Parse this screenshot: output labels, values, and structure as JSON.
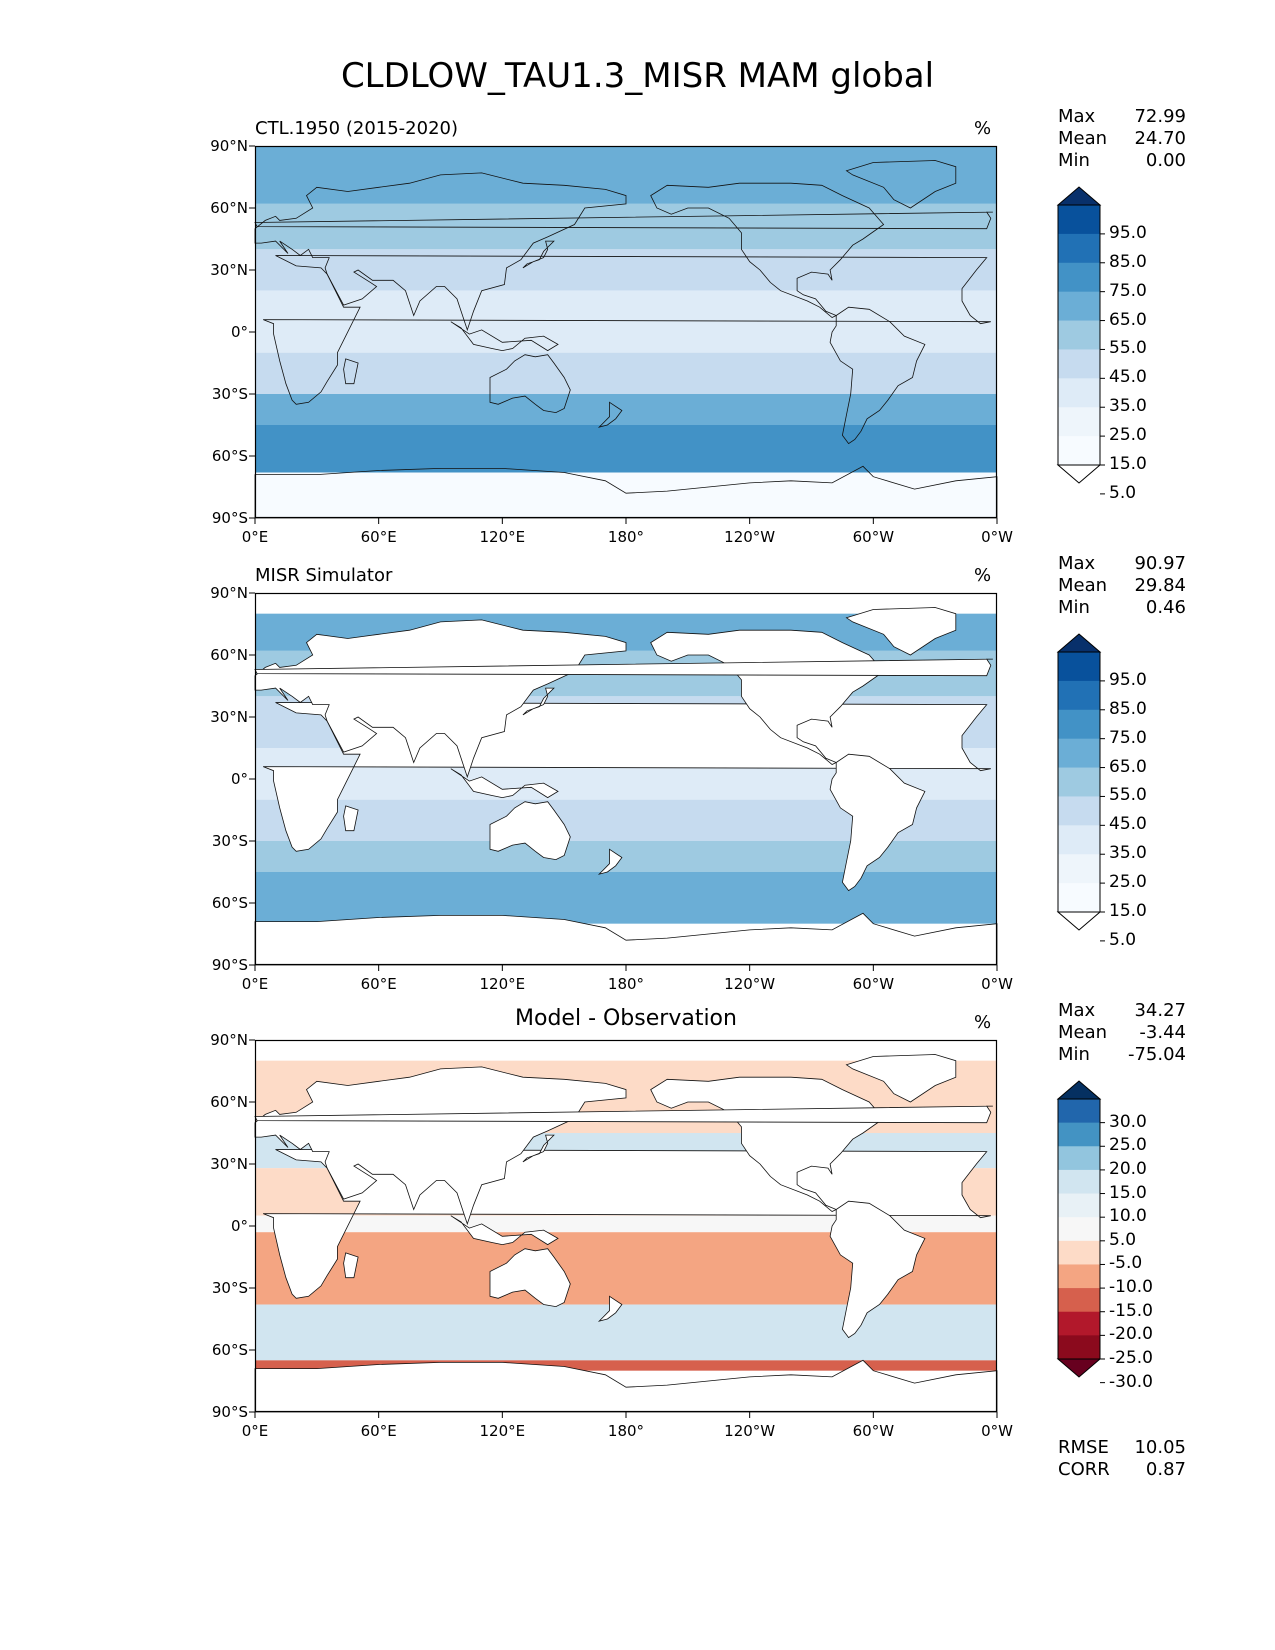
{
  "figure": {
    "title": "CLDLOW_TAU1.3_MISR MAM global"
  },
  "axes": {
    "lat_ticks": [
      "90°N",
      "60°N",
      "30°N",
      "0°",
      "30°S",
      "60°S",
      "90°S"
    ],
    "lon_ticks": [
      "0°E",
      "60°E",
      "120°E",
      "180°",
      "120°W",
      "60°W",
      "0°W"
    ]
  },
  "panels": [
    {
      "title": "CTL.1950 (2015-2020)",
      "units": "%",
      "stats": {
        "max_label": "Max",
        "max": "72.99",
        "mean_label": "Mean",
        "mean": "24.70",
        "min_label": "Min",
        "min": "0.00"
      },
      "colorbar": {
        "labels": [
          "95.0",
          "85.0",
          "75.0",
          "65.0",
          "55.0",
          "45.0",
          "35.0",
          "25.0",
          "15.0",
          "5.0"
        ],
        "colors": [
          "#08306b",
          "#08519c",
          "#2171b5",
          "#4292c6",
          "#6baed6",
          "#9ecae1",
          "#c6dbef",
          "#deebf7",
          "#eef5fb",
          "#f7fbff",
          "#ffffff"
        ]
      }
    },
    {
      "title": "MISR Simulator",
      "units": "%",
      "stats": {
        "max_label": "Max",
        "max": "90.97",
        "mean_label": "Mean",
        "mean": "29.84",
        "min_label": "Min",
        "min": "0.46"
      },
      "colorbar": {
        "labels": [
          "95.0",
          "85.0",
          "75.0",
          "65.0",
          "55.0",
          "45.0",
          "35.0",
          "25.0",
          "15.0",
          "5.0"
        ],
        "colors": [
          "#08306b",
          "#08519c",
          "#2171b5",
          "#4292c6",
          "#6baed6",
          "#9ecae1",
          "#c6dbef",
          "#deebf7",
          "#eef5fb",
          "#f7fbff",
          "#ffffff"
        ]
      }
    },
    {
      "title": "Model - Observation",
      "units": "%",
      "stats": {
        "max_label": "Max",
        "max": "34.27",
        "mean_label": "Mean",
        "mean": "-3.44",
        "min_label": "Min",
        "min": "-75.04"
      },
      "colorbar": {
        "labels": [
          "30.0",
          "25.0",
          "20.0",
          "15.0",
          "10.0",
          "5.0",
          "-5.0",
          "-10.0",
          "-15.0",
          "-20.0",
          "-25.0",
          "-30.0"
        ],
        "colors": [
          "#053061",
          "#2166ac",
          "#4393c3",
          "#92c5de",
          "#d1e5f0",
          "#e8f1f6",
          "#f7f7f7",
          "#fddbc7",
          "#f4a582",
          "#d6604d",
          "#b2182b",
          "#8b0a1d",
          "#67001f"
        ]
      },
      "metrics": {
        "rmse_label": "RMSE",
        "rmse": "10.05",
        "corr_label": "CORR",
        "corr": "0.87"
      }
    }
  ],
  "map_fields": {
    "panel1_bands": [
      {
        "lat_from": 90,
        "lat_to": 62,
        "color": "#6baed6"
      },
      {
        "lat_from": 62,
        "lat_to": 40,
        "color": "#9ecae1"
      },
      {
        "lat_from": 40,
        "lat_to": 20,
        "color": "#c6dbef"
      },
      {
        "lat_from": 20,
        "lat_to": -10,
        "color": "#deebf7"
      },
      {
        "lat_from": -10,
        "lat_to": -30,
        "color": "#c6dbef"
      },
      {
        "lat_from": -30,
        "lat_to": -45,
        "color": "#6baed6"
      },
      {
        "lat_from": -45,
        "lat_to": -68,
        "color": "#4292c6"
      },
      {
        "lat_from": -68,
        "lat_to": -90,
        "color": "#f7fbff"
      }
    ],
    "panel2_bands": [
      {
        "lat_from": 80,
        "lat_to": 62,
        "color": "#6baed6"
      },
      {
        "lat_from": 62,
        "lat_to": 40,
        "color": "#9ecae1"
      },
      {
        "lat_from": 40,
        "lat_to": 15,
        "color": "#c6dbef"
      },
      {
        "lat_from": 15,
        "lat_to": -10,
        "color": "#deebf7"
      },
      {
        "lat_from": -10,
        "lat_to": -30,
        "color": "#c6dbef"
      },
      {
        "lat_from": -30,
        "lat_to": -45,
        "color": "#9ecae1"
      },
      {
        "lat_from": -45,
        "lat_to": -70,
        "color": "#6baed6"
      }
    ],
    "panel3_bands": [
      {
        "lat_from": 80,
        "lat_to": 45,
        "color": "#fddbc7"
      },
      {
        "lat_from": 45,
        "lat_to": 28,
        "color": "#d1e5f0"
      },
      {
        "lat_from": 28,
        "lat_to": 5,
        "color": "#fddbc7"
      },
      {
        "lat_from": 5,
        "lat_to": -3,
        "color": "#f7f7f7"
      },
      {
        "lat_from": -3,
        "lat_to": -38,
        "color": "#f4a582"
      },
      {
        "lat_from": -38,
        "lat_to": -65,
        "color": "#d1e5f0"
      },
      {
        "lat_from": -65,
        "lat_to": -70,
        "color": "#d6604d"
      }
    ]
  }
}
